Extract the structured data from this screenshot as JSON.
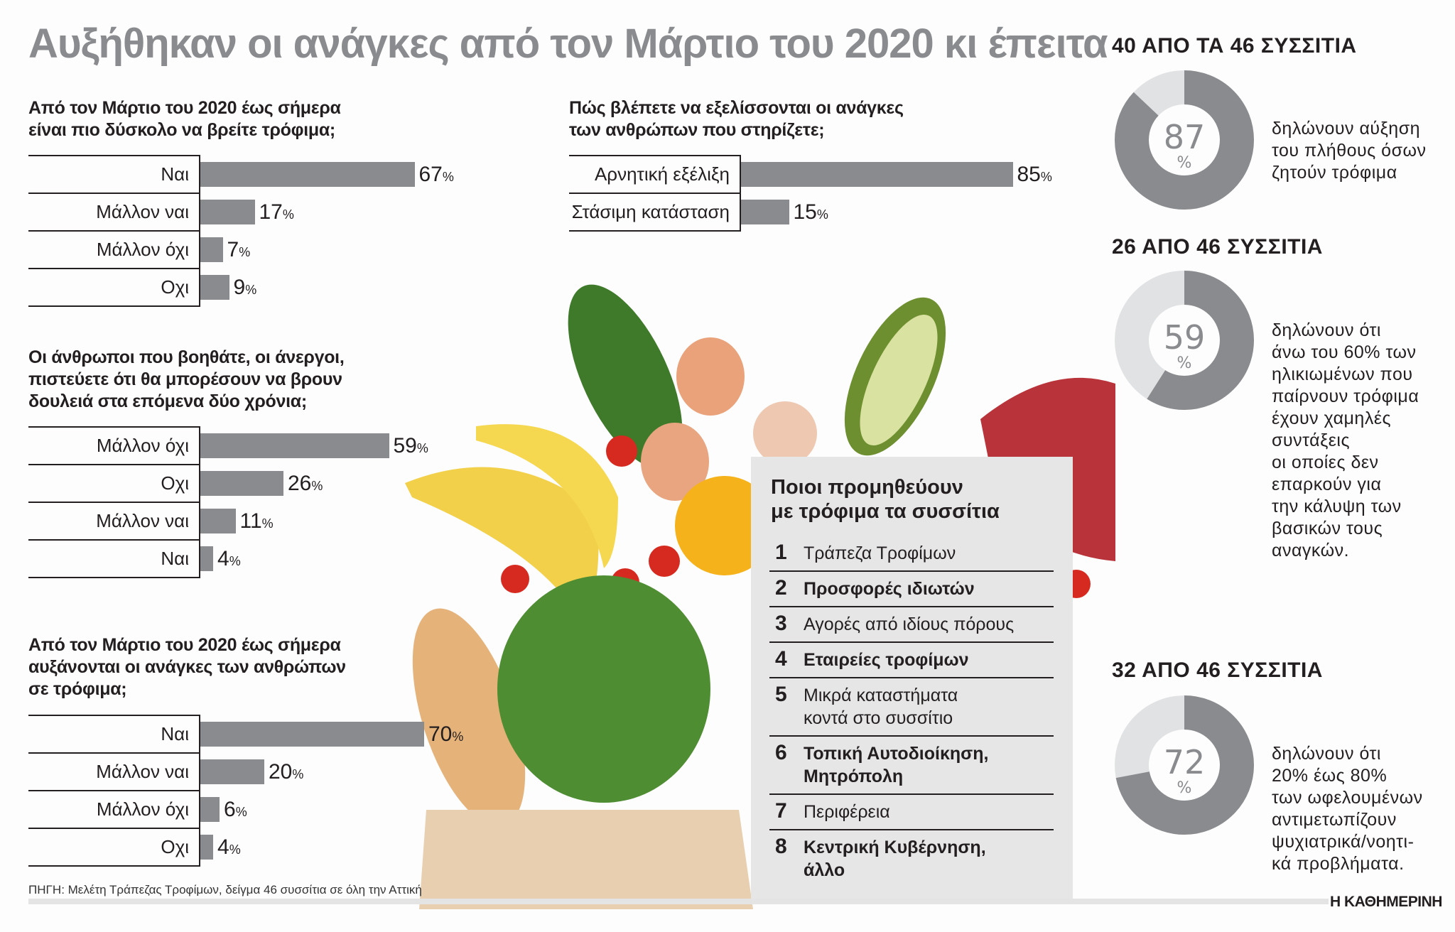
{
  "title": "Αυξήθηκαν οι ανάγκες από τον Μάρτιο του 2020 κι έπειτα",
  "colors": {
    "bar": "#8a8b8e",
    "donut_main": "#8a8b8e",
    "donut_rest": "#e1e2e4",
    "box_bg": "#e6e6e7",
    "title": "#8a8b8e"
  },
  "chart_data": [
    {
      "type": "bar",
      "orientation": "horizontal",
      "title": "Από τον Μάρτιο του 2020 έως σήμερα είναι πιο δύσκολο να βρείτε τρόφιμα;",
      "title_lines": [
        "Από τον Μάρτιο του 2020 έως σήμερα",
        "είναι πιο δύσκολο να βρείτε τρόφιμα;"
      ],
      "categories": [
        "Ναι",
        "Μάλλον ναι",
        "Μάλλον όχι",
        "Οχι"
      ],
      "values": [
        67,
        17,
        7,
        9
      ],
      "unit": "%"
    },
    {
      "type": "bar",
      "orientation": "horizontal",
      "title": "Οι άνθρωποι που βοηθάτε, οι άνεργοι, πιστεύετε ότι θα μπορέσουν να βρουν δουλειά στα επόμενα δύο χρόνια;",
      "title_lines": [
        "Οι άνθρωποι που βοηθάτε, οι άνεργοι,",
        "πιστεύετε ότι θα μπορέσουν να βρουν",
        "δουλειά στα επόμενα δύο χρόνια;"
      ],
      "categories": [
        "Μάλλον όχι",
        "Οχι",
        "Μάλλον ναι",
        "Ναι"
      ],
      "values": [
        59,
        26,
        11,
        4
      ],
      "unit": "%"
    },
    {
      "type": "bar",
      "orientation": "horizontal",
      "title": "Από τον Μάρτιο του 2020 έως σήμερα αυξάνονται οι ανάγκες των ανθρώπων σε τρόφιμα;",
      "title_lines": [
        "Από τον Μάρτιο του 2020 έως σήμερα",
        "αυξάνονται οι ανάγκες των ανθρώπων",
        "σε τρόφιμα;"
      ],
      "categories": [
        "Ναι",
        "Μάλλον ναι",
        "Μάλλον όχι",
        "Οχι"
      ],
      "values": [
        70,
        20,
        6,
        4
      ],
      "unit": "%"
    },
    {
      "type": "bar",
      "orientation": "horizontal",
      "title": "Πώς βλέπετε να εξελίσσονται οι ανάγκες των ανθρώπων που στηρίζετε;",
      "title_lines": [
        "Πώς βλέπετε να εξελίσσονται οι ανάγκες",
        "των ανθρώπων που στηρίζετε;"
      ],
      "categories": [
        "Αρνητική εξέλιξη",
        "Στάσιμη κατάσταση"
      ],
      "values": [
        85,
        15
      ],
      "unit": "%"
    },
    {
      "type": "pie",
      "donut": true,
      "title": "40 ΑΠΟ ΤΑ 46 ΣΥΣΣΙΤΙΑ",
      "value": 87,
      "unit": "%",
      "text_lines": [
        "δηλώνουν αύξηση",
        "του πλήθους όσων",
        "ζητούν τρόφιμα"
      ]
    },
    {
      "type": "pie",
      "donut": true,
      "title": "26 ΑΠΟ 46 ΣΥΣΣΙΤΙΑ",
      "value": 59,
      "unit": "%",
      "text_lines": [
        "δηλώνουν ότι",
        "άνω του 60% των",
        "ηλικιωμένων που",
        "παίρνουν τρόφιμα",
        "έχουν χαμηλές",
        "συντάξεις",
        "οι οποίες δεν",
        "επαρκούν για",
        "την κάλυψη των",
        "βασικών τους",
        "αναγκών."
      ]
    },
    {
      "type": "pie",
      "donut": true,
      "title": "32 ΑΠΟ 46 ΣΥΣΣΙΤΙΑ",
      "value": 72,
      "unit": "%",
      "text_lines": [
        "δηλώνουν ότι",
        "20% έως 80%",
        "των ωφελουμένων",
        "αντιμετωπίζουν",
        "ψυχιατρικά/νοητι-",
        "κά προβλήματα."
      ]
    }
  ],
  "suppliers": {
    "title_lines": [
      "Ποιοι προμηθεύουν",
      "με τρόφιμα τα συσσίτια"
    ],
    "items": [
      {
        "n": "1",
        "lines": [
          "Τράπεζα Τροφίμων"
        ],
        "bold": false
      },
      {
        "n": "2",
        "lines": [
          "Προσφορές ιδιωτών"
        ],
        "bold": true
      },
      {
        "n": "3",
        "lines": [
          "Αγορές από ιδίους πόρους"
        ],
        "bold": false
      },
      {
        "n": "4",
        "lines": [
          "Εταιρείες τροφίμων"
        ],
        "bold": true
      },
      {
        "n": "5",
        "lines": [
          "Μικρά καταστήματα",
          "κοντά στο συσσίτιο"
        ],
        "bold": false
      },
      {
        "n": "6",
        "lines": [
          "Τοπική Αυτοδιοίκηση,",
          "Μητρόπολη"
        ],
        "bold": true
      },
      {
        "n": "7",
        "lines": [
          "Περιφέρεια"
        ],
        "bold": false
      },
      {
        "n": "8",
        "lines": [
          "Κεντρική Κυβέρνηση,",
          "άλλο"
        ],
        "bold": true
      }
    ]
  },
  "source": "ΠΗΓΗ: Μελέτη Τράπεζας Τροφίμων, δείγμα 46 συσσίτια σε όλη την Αττική",
  "logo": "Η ΚΑΘΗΜΕΡΙΝΗ"
}
